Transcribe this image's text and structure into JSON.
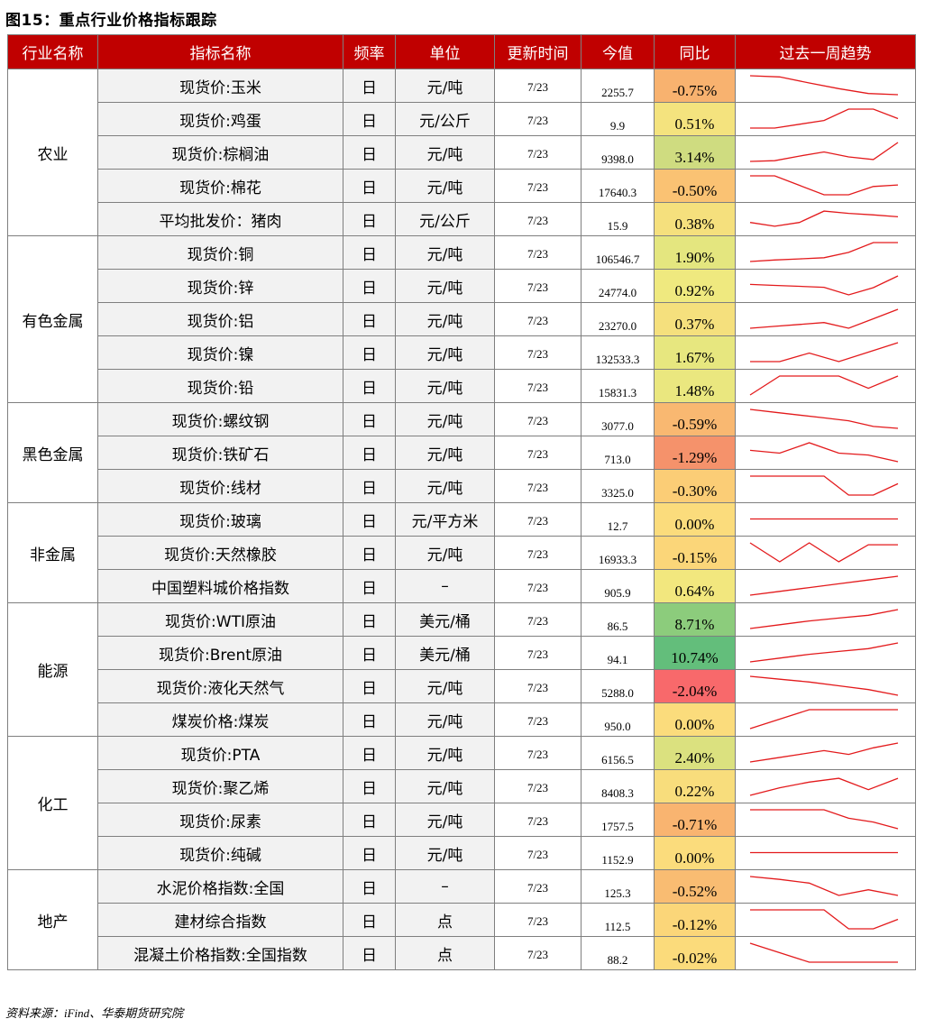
{
  "title": "图15：重点行业价格指标跟踪",
  "source": "资料来源：iFind、华泰期货研究院",
  "headers": [
    "行业名称",
    "指标名称",
    "频率",
    "单位",
    "更新时间",
    "今值",
    "同比",
    "过去一周趋势"
  ],
  "groups": [
    {
      "name": "农业",
      "rows": [
        {
          "indicator": "现货价:玉米",
          "freq": "日",
          "unit": "元/吨",
          "date": "7/23",
          "value": "2255.7",
          "yoy": "-0.75%",
          "color": "#f8b26f",
          "trend": [
            1.0,
            0.94,
            0.62,
            0.32,
            0.06,
            0.0
          ]
        },
        {
          "indicator": "现货价:鸡蛋",
          "freq": "日",
          "unit": "元/公斤",
          "date": "7/23",
          "value": "9.9",
          "yoy": "0.51%",
          "color": "#f4e37e",
          "trend": [
            0.0,
            0.0,
            0.2,
            0.4,
            1.0,
            1.0,
            0.5
          ]
        },
        {
          "indicator": "现货价:棕榈油",
          "freq": "日",
          "unit": "元/吨",
          "date": "7/23",
          "value": "9398.0",
          "yoy": "3.14%",
          "color": "#cfdc80",
          "trend": [
            0.0,
            0.04,
            0.28,
            0.5,
            0.24,
            0.1,
            1.0
          ]
        },
        {
          "indicator": "现货价:棉花",
          "freq": "日",
          "unit": "元/吨",
          "date": "7/23",
          "value": "17640.3",
          "yoy": "-0.50%",
          "color": "#fac273",
          "trend": [
            1.0,
            1.0,
            0.5,
            0.0,
            0.0,
            0.44,
            0.52
          ]
        },
        {
          "indicator": "平均批发价：猪肉",
          "freq": "日",
          "unit": "元/公斤",
          "date": "7/23",
          "value": "15.9",
          "yoy": "0.38%",
          "color": "#f5e07d",
          "trend": [
            0.3,
            0.1,
            0.3,
            0.9,
            0.78,
            0.7,
            0.6
          ]
        }
      ]
    },
    {
      "name": "有色金属",
      "rows": [
        {
          "indicator": "现货价:铜",
          "freq": "日",
          "unit": "元/吨",
          "date": "7/23",
          "value": "106546.7",
          "yoy": "1.90%",
          "color": "#e4e67f",
          "trend": [
            0.0,
            0.08,
            0.14,
            0.2,
            0.48,
            1.0,
            1.0
          ]
        },
        {
          "indicator": "现货价:锌",
          "freq": "日",
          "unit": "元/吨",
          "date": "7/23",
          "value": "24774.0",
          "yoy": "0.92%",
          "color": "#efe97f",
          "trend": [
            0.55,
            0.5,
            0.45,
            0.4,
            0.0,
            0.38,
            1.0
          ]
        },
        {
          "indicator": "现货价:铝",
          "freq": "日",
          "unit": "元/吨",
          "date": "7/23",
          "value": "23270.0",
          "yoy": "0.37%",
          "color": "#f5e07d",
          "trend": [
            0.0,
            0.1,
            0.2,
            0.3,
            0.0,
            0.5,
            1.0
          ]
        },
        {
          "indicator": "现货价:镍",
          "freq": "日",
          "unit": "元/吨",
          "date": "7/23",
          "value": "132533.3",
          "yoy": "1.67%",
          "color": "#e7e77f",
          "trend": [
            0.0,
            0.0,
            0.45,
            0.0,
            0.5,
            1.0
          ]
        },
        {
          "indicator": "现货价:铅",
          "freq": "日",
          "unit": "元/吨",
          "date": "7/23",
          "value": "15831.3",
          "yoy": "1.48%",
          "color": "#eae77f",
          "trend": [
            0.0,
            1.0,
            1.0,
            1.0,
            0.35,
            1.0
          ]
        }
      ]
    },
    {
      "name": "黑色金属",
      "rows": [
        {
          "indicator": "现货价:螺纹钢",
          "freq": "日",
          "unit": "元/吨",
          "date": "7/23",
          "value": "3077.0",
          "yoy": "-0.59%",
          "color": "#f9b871",
          "trend": [
            1.0,
            0.85,
            0.7,
            0.55,
            0.4,
            0.1,
            0.0
          ]
        },
        {
          "indicator": "现货价:铁矿石",
          "freq": "日",
          "unit": "元/吨",
          "date": "7/23",
          "value": "713.0",
          "yoy": "-1.29%",
          "color": "#f5926b",
          "trend": [
            0.6,
            0.45,
            1.0,
            0.45,
            0.35,
            0.0
          ]
        },
        {
          "indicator": "现货价:线材",
          "freq": "日",
          "unit": "元/吨",
          "date": "7/23",
          "value": "3325.0",
          "yoy": "-0.30%",
          "color": "#fbcd76",
          "trend": [
            1.0,
            1.0,
            1.0,
            1.0,
            0.0,
            0.0,
            0.6
          ]
        }
      ]
    },
    {
      "name": "非金属",
      "rows": [
        {
          "indicator": "现货价:玻璃",
          "freq": "日",
          "unit": "元/平方米",
          "date": "7/23",
          "value": "12.7",
          "yoy": "0.00%",
          "color": "#fbdc7c",
          "trend": [
            0.5,
            0.5,
            0.5,
            0.5,
            0.5,
            0.5,
            0.5
          ]
        },
        {
          "indicator": "现货价:天然橡胶",
          "freq": "日",
          "unit": "元/吨",
          "date": "7/23",
          "value": "16933.3",
          "yoy": "-0.15%",
          "color": "#fbd679",
          "trend": [
            1.0,
            0.0,
            1.0,
            0.0,
            0.9,
            0.9
          ]
        },
        {
          "indicator": "中国塑料城价格指数",
          "freq": "日",
          "unit": "–",
          "date": "7/23",
          "value": "905.9",
          "yoy": "0.64%",
          "color": "#f2e77e",
          "trend": [
            0.0,
            0.2,
            0.4,
            0.6,
            0.8,
            1.0
          ]
        }
      ]
    },
    {
      "name": "能源",
      "rows": [
        {
          "indicator": "现货价:WTI原油",
          "freq": "日",
          "unit": "美元/桶",
          "date": "7/23",
          "value": "86.5",
          "yoy": "8.71%",
          "color": "#8ccc7c",
          "trend": [
            0.0,
            0.2,
            0.4,
            0.55,
            0.7,
            1.0
          ]
        },
        {
          "indicator": "现货价:Brent原油",
          "freq": "日",
          "unit": "美元/桶",
          "date": "7/23",
          "value": "94.1",
          "yoy": "10.74%",
          "color": "#63be7b",
          "trend": [
            0.0,
            0.2,
            0.4,
            0.55,
            0.7,
            1.0
          ]
        },
        {
          "indicator": "现货价:液化天然气",
          "freq": "日",
          "unit": "元/吨",
          "date": "7/23",
          "value": "5288.0",
          "yoy": "-2.04%",
          "color": "#f8696b",
          "trend": [
            1.0,
            0.85,
            0.7,
            0.5,
            0.3,
            0.0
          ]
        },
        {
          "indicator": "煤炭价格:煤炭",
          "freq": "日",
          "unit": "元/吨",
          "date": "7/23",
          "value": "950.0",
          "yoy": "0.00%",
          "color": "#fbdc7c",
          "trend": [
            0.0,
            0.5,
            1.0,
            1.0,
            1.0,
            1.0
          ]
        }
      ]
    },
    {
      "name": "化工",
      "rows": [
        {
          "indicator": "现货价:PTA",
          "freq": "日",
          "unit": "元/吨",
          "date": "7/23",
          "value": "6156.5",
          "yoy": "2.40%",
          "color": "#dbe17f",
          "trend": [
            0.0,
            0.2,
            0.4,
            0.6,
            0.4,
            0.75,
            1.0
          ]
        },
        {
          "indicator": "现货价:聚乙烯",
          "freq": "日",
          "unit": "元/吨",
          "date": "7/23",
          "value": "8408.3",
          "yoy": "0.22%",
          "color": "#f8dd7c",
          "trend": [
            0.0,
            0.4,
            0.7,
            0.9,
            0.3,
            0.9
          ]
        },
        {
          "indicator": "现货价:尿素",
          "freq": "日",
          "unit": "元/吨",
          "date": "7/23",
          "value": "1757.5",
          "yoy": "-0.71%",
          "color": "#f9b470",
          "trend": [
            1.0,
            1.0,
            1.0,
            1.0,
            0.55,
            0.35,
            0.0
          ]
        },
        {
          "indicator": "现货价:纯碱",
          "freq": "日",
          "unit": "元/吨",
          "date": "7/23",
          "value": "1152.9",
          "yoy": "0.00%",
          "color": "#fbdc7c",
          "trend": [
            0.5,
            0.5,
            0.5,
            0.5,
            0.5,
            0.5,
            0.5
          ]
        }
      ]
    },
    {
      "name": "地产",
      "rows": [
        {
          "indicator": "水泥价格指数:全国",
          "freq": "日",
          "unit": "–",
          "date": "7/23",
          "value": "125.3",
          "yoy": "-0.52%",
          "color": "#f9bc72",
          "trend": [
            1.0,
            0.85,
            0.65,
            0.0,
            0.3,
            0.0
          ]
        },
        {
          "indicator": "建材综合指数",
          "freq": "日",
          "unit": "点",
          "date": "7/23",
          "value": "112.5",
          "yoy": "-0.12%",
          "color": "#fbd679",
          "trend": [
            1.0,
            1.0,
            1.0,
            1.0,
            0.0,
            0.0,
            0.5
          ]
        },
        {
          "indicator": "混凝土价格指数:全国指数",
          "freq": "日",
          "unit": "点",
          "date": "7/23",
          "value": "88.2",
          "yoy": "-0.02%",
          "color": "#fbdb7b",
          "trend": [
            1.0,
            0.5,
            0.0,
            0.0,
            0.0,
            0.0
          ]
        }
      ]
    }
  ]
}
